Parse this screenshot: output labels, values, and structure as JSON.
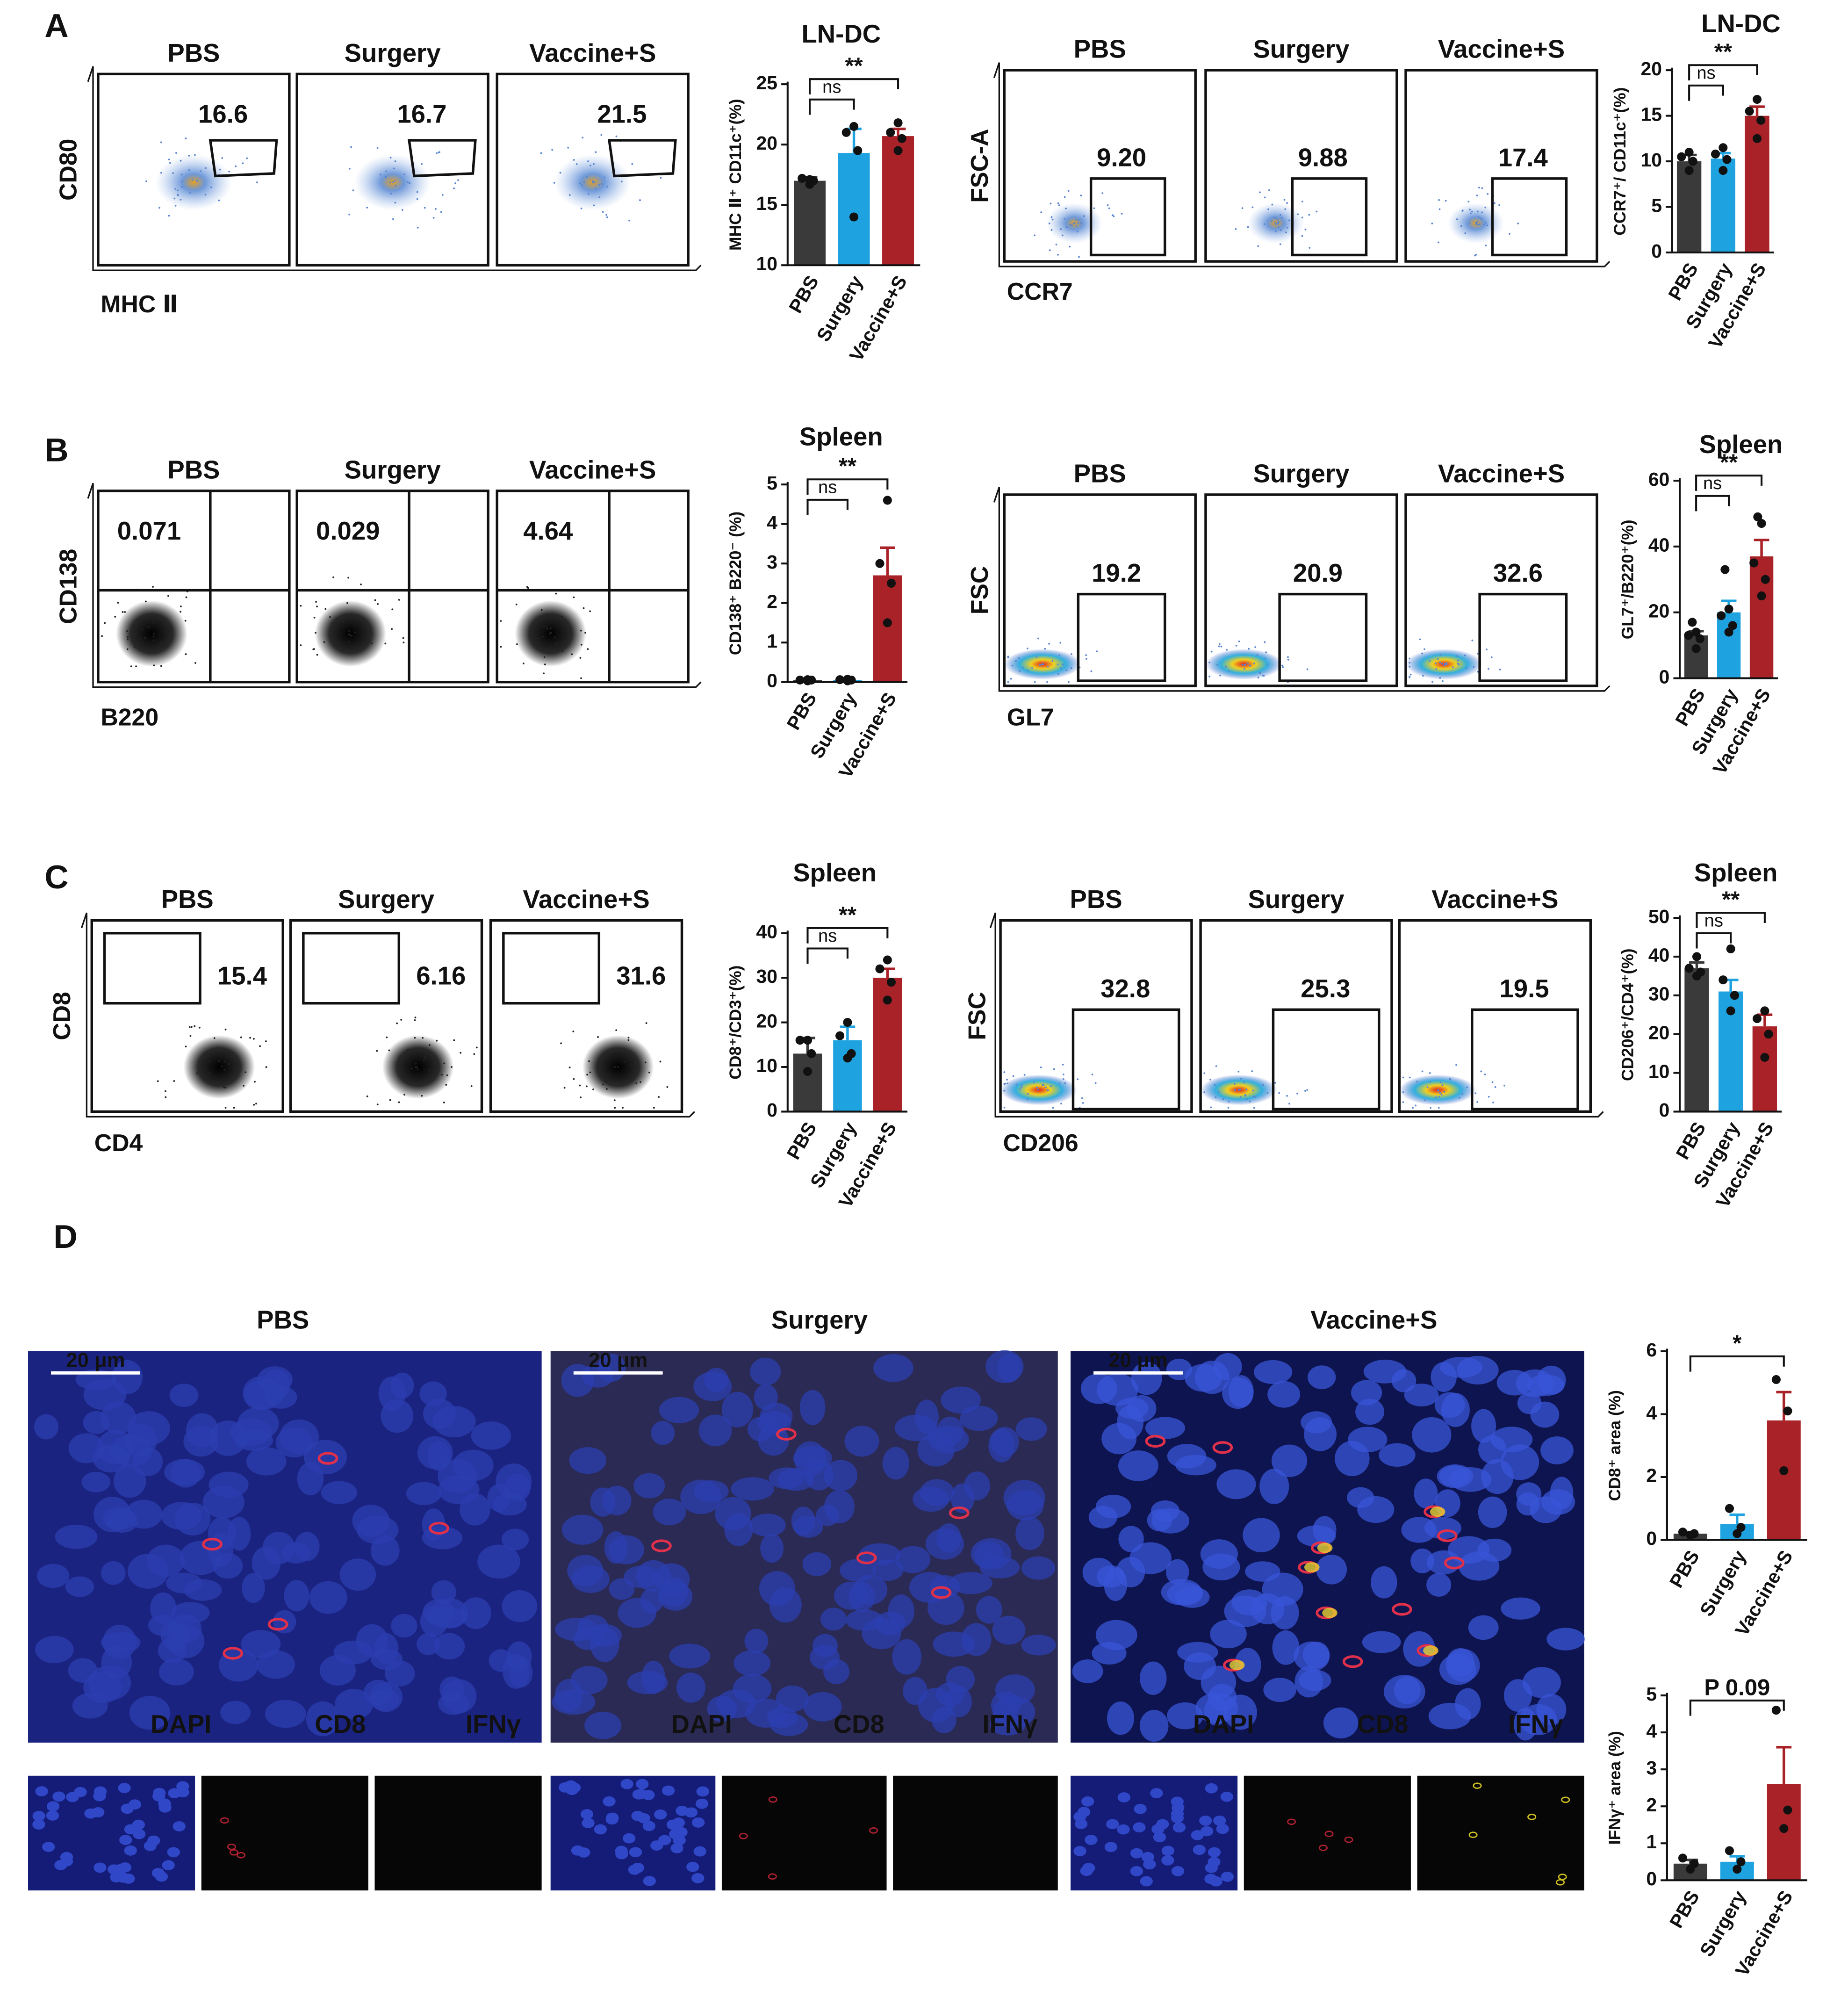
{
  "panel_labels": [
    "A",
    "B",
    "C",
    "D"
  ],
  "flow_plots": [
    {
      "groups": [
        "PBS",
        "Surgery",
        "Vaccine+S"
      ],
      "ylabel": "CD80",
      "xlabel": "MHC Ⅱ",
      "values": [
        16.6,
        16.7,
        21.5
      ],
      "value_labels": [
        "16.6",
        "16.7",
        "21.5"
      ]
    },
    {
      "groups": [
        "PBS",
        "Surgery",
        "Vaccine+S"
      ],
      "ylabel": "FSC-A",
      "xlabel": "CCR7",
      "values": [
        9.2,
        9.88,
        17.4
      ],
      "value_labels": [
        "9.20",
        "9.88",
        "17.4"
      ]
    },
    {
      "groups": [
        "PBS",
        "Surgery",
        "Vaccine+S"
      ],
      "ylabel": "CD138",
      "xlabel": "B220",
      "values": [
        0.071,
        0.029,
        4.64
      ],
      "value_labels": [
        "0.071",
        "0.029",
        "4.64"
      ]
    },
    {
      "groups": [
        "PBS",
        "Surgery",
        "Vaccine+S"
      ],
      "ylabel": "FSC",
      "xlabel": "GL7",
      "values": [
        19.2,
        20.9,
        32.6
      ],
      "value_labels": [
        "19.2",
        "20.9",
        "32.6"
      ]
    },
    {
      "groups": [
        "PBS",
        "Surgery",
        "Vaccine+S"
      ],
      "ylabel": "CD8",
      "xlabel": "CD4",
      "values": [
        15.4,
        6.16,
        31.6
      ],
      "value_labels": [
        "15.4",
        "6.16",
        "31.6"
      ]
    },
    {
      "groups": [
        "PBS",
        "Surgery",
        "Vaccine+S"
      ],
      "ylabel": "FSC",
      "xlabel": "CD206",
      "values": [
        32.8,
        25.3,
        19.5
      ],
      "value_labels": [
        "32.8",
        "25.3",
        "19.5"
      ]
    }
  ],
  "chart_data": [
    {
      "type": "bar",
      "title": "LN-DC",
      "ylabel": "MHC Ⅱ⁺ CD11c⁺(%)",
      "categories": [
        "PBS",
        "Surgery",
        "Vaccine+S"
      ],
      "colors": [
        "#3a3a3a",
        "#1fa3e0",
        "#a82228"
      ],
      "values": [
        17,
        19.3,
        20.7
      ],
      "errors": [
        0.3,
        2,
        0.6
      ],
      "points": [
        [
          16.7,
          17,
          17.2,
          17.1
        ],
        [
          14,
          19.5,
          21,
          21.5
        ],
        [
          19.5,
          20.5,
          21,
          21.8
        ]
      ],
      "ylim": [
        10,
        25
      ],
      "yticks": [
        10,
        15,
        20,
        25
      ],
      "annotations": [
        "ns",
        "**"
      ]
    },
    {
      "type": "bar",
      "title": "LN-DC",
      "ylabel": "CCR7⁺/ CD11c⁺(%)",
      "categories": [
        "PBS",
        "Surgery",
        "Vaccine+S"
      ],
      "colors": [
        "#3a3a3a",
        "#1fa3e0",
        "#a82228"
      ],
      "values": [
        10,
        10.3,
        15
      ],
      "errors": [
        0.7,
        0.6,
        1
      ],
      "points": [
        [
          9,
          10,
          10.5,
          11
        ],
        [
          9,
          10.2,
          10.8,
          11.5
        ],
        [
          12.5,
          14.5,
          15.5,
          16.8
        ]
      ],
      "ylim": [
        0,
        20
      ],
      "yticks": [
        0,
        5,
        10,
        15,
        20
      ],
      "annotations": [
        "ns",
        "**"
      ]
    },
    {
      "type": "bar",
      "title": "Spleen",
      "ylabel": "CD138⁺ B220⁻ (%)",
      "categories": [
        "PBS",
        "Surgery",
        "Vaccine+S"
      ],
      "colors": [
        "#3a3a3a",
        "#1fa3e0",
        "#a82228"
      ],
      "values": [
        0.05,
        0.05,
        2.7
      ],
      "errors": [
        0.02,
        0.02,
        0.7
      ],
      "points": [
        [
          0.03,
          0.05,
          0.05,
          0.06
        ],
        [
          0.03,
          0.05,
          0.06,
          0.07
        ],
        [
          1.5,
          2.5,
          3,
          4.6
        ]
      ],
      "ylim": [
        0,
        5
      ],
      "yticks": [
        0,
        1,
        2,
        3,
        4,
        5
      ],
      "annotations": [
        "ns",
        "**"
      ]
    },
    {
      "type": "bar",
      "title": "Spleen",
      "ylabel": "GL7⁺/B220⁺(%)",
      "categories": [
        "PBS",
        "Surgery",
        "Vaccine+S"
      ],
      "colors": [
        "#3a3a3a",
        "#1fa3e0",
        "#a82228"
      ],
      "values": [
        13,
        20,
        37
      ],
      "errors": [
        1.3,
        3.5,
        5
      ],
      "points": [
        [
          9,
          12,
          13,
          14,
          17
        ],
        [
          14,
          16,
          19,
          21,
          33
        ],
        [
          25,
          30,
          35,
          47,
          49
        ]
      ],
      "ylim": [
        0,
        60
      ],
      "yticks": [
        0,
        20,
        40,
        60
      ],
      "annotations": [
        "ns",
        "**"
      ]
    },
    {
      "type": "bar",
      "title": "Spleen",
      "ylabel": "CD8⁺/CD3⁺(%)",
      "categories": [
        "PBS",
        "Surgery",
        "Vaccine+S"
      ],
      "colors": [
        "#3a3a3a",
        "#1fa3e0",
        "#a82228"
      ],
      "values": [
        13,
        16,
        30
      ],
      "errors": [
        3.5,
        3,
        2
      ],
      "points": [
        [
          9,
          13,
          16,
          16
        ],
        [
          12,
          13,
          17,
          20
        ],
        [
          25,
          29,
          32,
          34
        ]
      ],
      "ylim": [
        0,
        40
      ],
      "yticks": [
        0,
        10,
        20,
        30,
        40
      ],
      "annotations": [
        "ns",
        "**"
      ]
    },
    {
      "type": "bar",
      "title": "Spleen",
      "ylabel": "CD206⁺/CD4⁺(%)",
      "categories": [
        "PBS",
        "Surgery",
        "Vaccine+S"
      ],
      "colors": [
        "#3a3a3a",
        "#1fa3e0",
        "#a82228"
      ],
      "values": [
        37,
        31,
        22
      ],
      "errors": [
        1.5,
        3,
        3
      ],
      "points": [
        [
          35,
          36,
          37,
          40
        ],
        [
          26,
          30,
          34,
          42
        ],
        [
          14,
          20,
          24,
          26
        ]
      ],
      "ylim": [
        0,
        50
      ],
      "yticks": [
        0,
        10,
        20,
        30,
        40,
        50
      ],
      "annotations": [
        "ns",
        "**"
      ]
    },
    {
      "type": "bar",
      "ylabel": "CD8⁺ area (%)",
      "categories": [
        "PBS",
        "Surgery",
        "Vaccine+S"
      ],
      "colors": [
        "#3a3a3a",
        "#1fa3e0",
        "#a82228"
      ],
      "values": [
        0.2,
        0.5,
        3.8
      ],
      "errors": [
        0.05,
        0.3,
        0.9
      ],
      "points": [
        [
          0.15,
          0.2,
          0.25
        ],
        [
          0.2,
          0.4,
          1
        ],
        [
          2.2,
          4.1,
          5.1
        ]
      ],
      "ylim": [
        0,
        6
      ],
      "yticks": [
        0,
        2,
        4,
        6
      ],
      "annotations": [
        "*"
      ]
    },
    {
      "type": "bar",
      "ylabel": "IFNγ⁺ area (%)",
      "categories": [
        "PBS",
        "Surgery",
        "Vaccine+S"
      ],
      "colors": [
        "#3a3a3a",
        "#1fa3e0",
        "#a82228"
      ],
      "values": [
        0.45,
        0.5,
        2.6
      ],
      "errors": [
        0.1,
        0.15,
        1
      ],
      "points": [
        [
          0.3,
          0.45,
          0.6
        ],
        [
          0.3,
          0.5,
          0.8
        ],
        [
          1.4,
          1.9,
          4.6
        ]
      ],
      "ylim": [
        0,
        5
      ],
      "yticks": [
        0,
        1,
        2,
        3,
        4,
        5
      ],
      "annotations": [
        "P 0.09"
      ]
    }
  ],
  "microscopy": {
    "groups": [
      "PBS",
      "Surgery",
      "Vaccine+S"
    ],
    "scale_bar": "20 μm",
    "channels": [
      "DAPI",
      "CD8",
      "IFNγ"
    ]
  }
}
